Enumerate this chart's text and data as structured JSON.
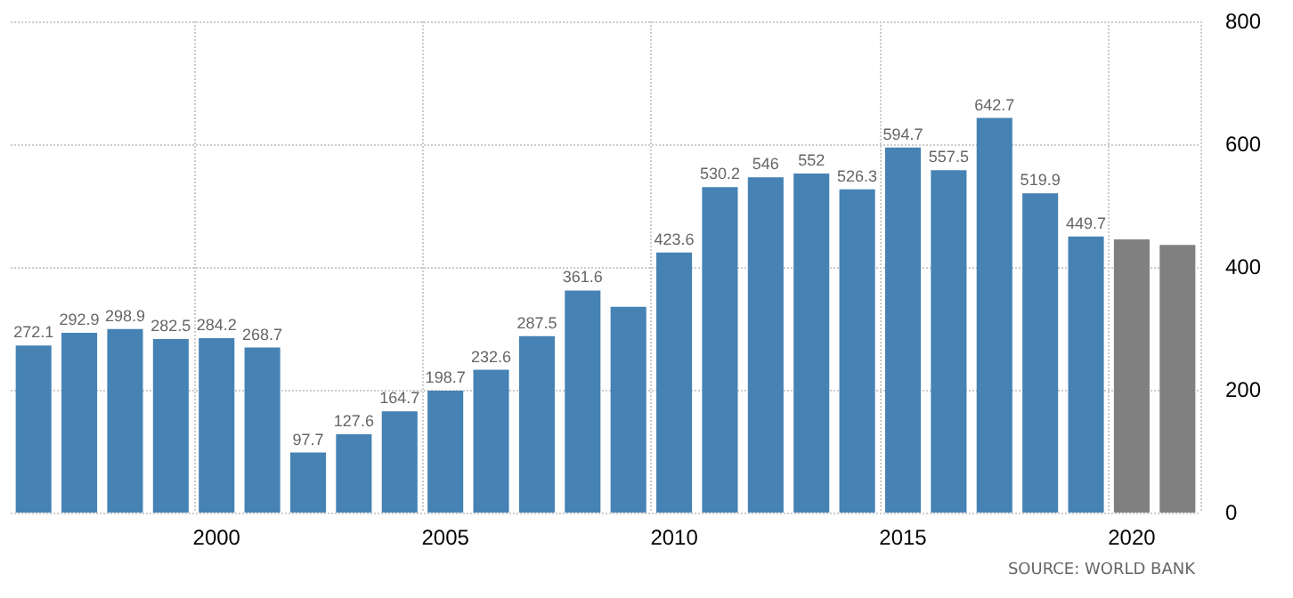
{
  "chart_data": {
    "type": "bar",
    "categories": [
      null,
      null,
      null,
      null,
      "2000",
      null,
      null,
      null,
      null,
      "2005",
      null,
      null,
      null,
      null,
      "2010",
      null,
      null,
      null,
      null,
      "2015",
      null,
      null,
      null,
      null,
      "2020",
      null
    ],
    "values": [
      272.1,
      292.9,
      298.9,
      282.5,
      284.2,
      268.7,
      97.7,
      127.6,
      164.7,
      198.7,
      232.6,
      287.5,
      361.6,
      335,
      423.6,
      530.2,
      546,
      552,
      526.3,
      594.7,
      557.5,
      642.7,
      519.9,
      449.7,
      445,
      436
    ],
    "value_labels": [
      "272.1",
      "292.9",
      "298.9",
      "282.5",
      "284.2",
      "268.7",
      "97.7",
      "127.6",
      "164.7",
      "198.7",
      "232.6",
      "287.5",
      "361.6",
      null,
      "423.6",
      "530.2",
      "546",
      "552",
      "526.3",
      "594.7",
      "557.5",
      "642.7",
      "519.9",
      "449.7",
      null,
      null
    ],
    "colors": [
      "#4682b4",
      "#4682b4",
      "#4682b4",
      "#4682b4",
      "#4682b4",
      "#4682b4",
      "#4682b4",
      "#4682b4",
      "#4682b4",
      "#4682b4",
      "#4682b4",
      "#4682b4",
      "#4682b4",
      "#4682b4",
      "#4682b4",
      "#4682b4",
      "#4682b4",
      "#4682b4",
      "#4682b4",
      "#4682b4",
      "#4682b4",
      "#4682b4",
      "#4682b4",
      "#4682b4",
      "#808080",
      "#808080"
    ],
    "ylim": [
      0,
      800
    ],
    "yticks": [
      0,
      200,
      400,
      600,
      800
    ],
    "grid": true,
    "annotations": [
      "SOURCE: WORLD BANK"
    ]
  }
}
